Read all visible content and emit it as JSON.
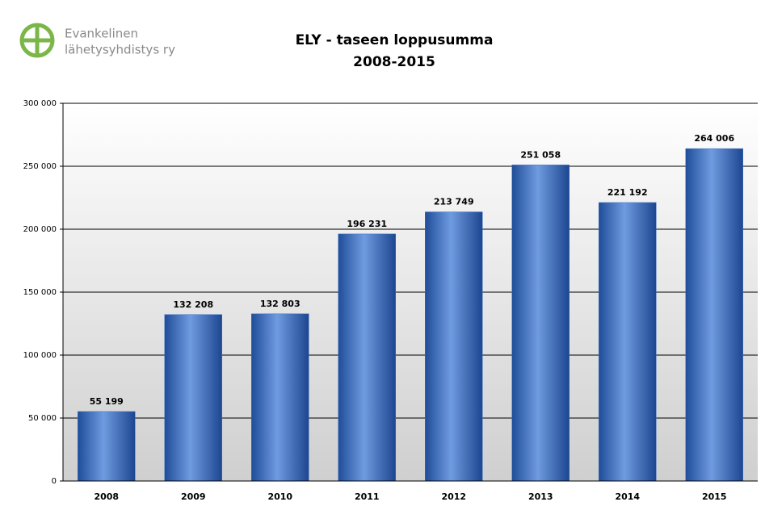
{
  "chart_data": {
    "type": "bar",
    "title": "ELY - taseen loppusumma",
    "subtitle": "2008-2015",
    "logo_text": [
      "Evankelinen",
      "lähetysyhdistys ry"
    ],
    "categories": [
      "2008",
      "2009",
      "2010",
      "2011",
      "2012",
      "2013",
      "2014",
      "2015"
    ],
    "values": [
      55199,
      132208,
      132803,
      196231,
      213749,
      251058,
      221192,
      264006
    ],
    "value_labels": [
      "55 199",
      "132 208",
      "132 803",
      "196 231",
      "213 749",
      "251 058",
      "221 192",
      "264 006"
    ],
    "color": "#3a6fc4",
    "ylim": [
      0,
      300000
    ],
    "yticks": [
      0,
      {
        "value": 50000,
        "label": "50 000"
      },
      {
        "value": 100000,
        "label": "100 000"
      },
      {
        "value": 150000,
        "label": "150 000"
      },
      {
        "value": 200000,
        "label": "200 000"
      },
      {
        "value": 250000,
        "label": "250 000"
      },
      {
        "value": 300000,
        "label": "300 000"
      }
    ],
    "grid": true
  }
}
